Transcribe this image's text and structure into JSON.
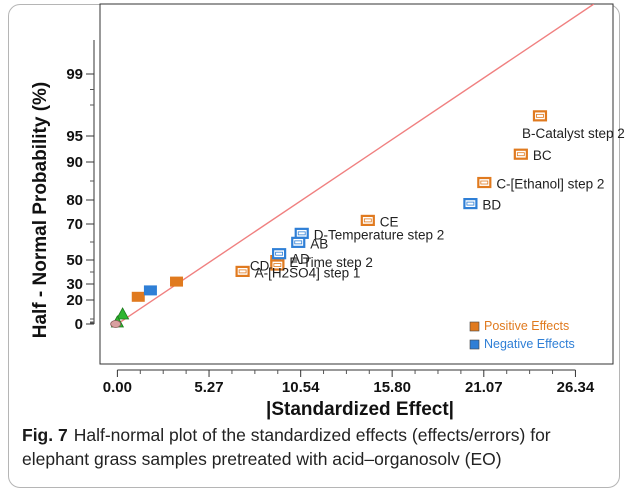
{
  "chart_data": {
    "type": "scatter",
    "xlabel": "|Standardized Effect|",
    "ylabel": "Half - Normal Probability (%)",
    "x_ticks": [
      "0.00",
      "5.27",
      "10.54",
      "15.80",
      "21.07",
      "26.34"
    ],
    "x_tick_values": [
      0.0,
      5.27,
      10.54,
      15.8,
      21.07,
      26.34
    ],
    "xlim": [
      -1.0,
      28.5
    ],
    "y_ticks": [
      "0",
      "20",
      "30",
      "50",
      "70",
      "80",
      "90",
      "95",
      "99"
    ],
    "y_tick_values": [
      0,
      20,
      30,
      50,
      70,
      80,
      90,
      95,
      99
    ],
    "ylim": [
      -5,
      99.9
    ],
    "y_scale": "half-normal probability",
    "grid": false,
    "legend_position": "bottom-right",
    "legend": [
      {
        "label": "Positive Effects",
        "color": "#e07a1f"
      },
      {
        "label": "Negative Effects",
        "color": "#2f7fd6"
      }
    ],
    "reference_line": {
      "from": [
        0,
        0
      ],
      "to": [
        27.4,
        99.9
      ],
      "color": "#f08080"
    },
    "series": [
      {
        "name": "Positive Effects",
        "color": "#e07a1f",
        "points": [
          {
            "x": 24.3,
            "y": 96.3,
            "label": "B-Catalyst step 2"
          },
          {
            "x": 23.2,
            "y": 91.5,
            "label": "BC"
          },
          {
            "x": 21.1,
            "y": 84.6,
            "label": "C-[Ethanol] step 2"
          },
          {
            "x": 14.4,
            "y": 71.5,
            "label": "CE"
          },
          {
            "x": 9.2,
            "y": 49.5,
            "label": "CD"
          },
          {
            "x": 9.2,
            "y": 45.8,
            "label": "E-Time step 2"
          },
          {
            "x": 7.2,
            "y": 40.5,
            "label": "A-[H2SO4] step 1"
          },
          {
            "x": 3.4,
            "y": 32.0,
            "label": ""
          },
          {
            "x": 1.2,
            "y": 22.0,
            "label": ""
          }
        ]
      },
      {
        "name": "Negative Effects",
        "color": "#2f7fd6",
        "points": [
          {
            "x": 20.3,
            "y": 78.5,
            "label": "BD"
          },
          {
            "x": 10.6,
            "y": 64.8,
            "label": "D-Temperature step 2"
          },
          {
            "x": 10.4,
            "y": 59.8,
            "label": "AB"
          },
          {
            "x": 9.3,
            "y": 53.5,
            "label": "AD"
          },
          {
            "x": 1.9,
            "y": 26.0,
            "label": ""
          }
        ]
      },
      {
        "name": "",
        "color": "#2fb52f",
        "marker": "triangle",
        "points": [
          {
            "x": 0.3,
            "y": 10.0,
            "label": ""
          },
          {
            "x": 0.0,
            "y": 2.0,
            "label": ""
          }
        ]
      },
      {
        "name": "",
        "color": "#d9a0a0",
        "marker": "circle",
        "points": [
          {
            "x": -0.1,
            "y": 0.0,
            "label": ""
          }
        ]
      }
    ]
  },
  "caption": {
    "fig_label": "Fig. 7",
    "text": "Half-normal plot of the standardized effects (effects/errors) for elephant grass samples pretreated with acid–organosolv (EO)"
  }
}
